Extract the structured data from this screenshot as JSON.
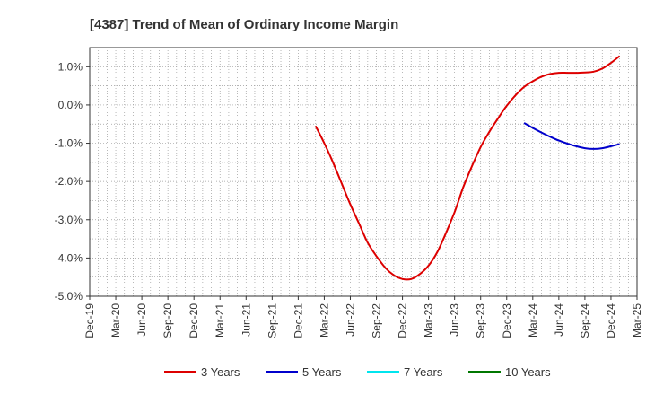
{
  "chart_data": {
    "type": "line",
    "title": "[4387]  Trend of Mean of Ordinary Income Margin",
    "xlabel": "",
    "ylabel": "",
    "x_ticks": [
      "Dec-19",
      "Mar-20",
      "Jun-20",
      "Sep-20",
      "Dec-20",
      "Mar-21",
      "Jun-21",
      "Sep-21",
      "Dec-21",
      "Mar-22",
      "Jun-22",
      "Sep-22",
      "Dec-22",
      "Mar-23",
      "Jun-23",
      "Sep-23",
      "Dec-23",
      "Mar-24",
      "Jun-24",
      "Sep-24",
      "Dec-24",
      "Mar-25"
    ],
    "y_ticks": [
      "1.0%",
      "0.0%",
      "-1.0%",
      "-2.0%",
      "-3.0%",
      "-4.0%",
      "-5.0%"
    ],
    "ylim": [
      -5.0,
      1.5
    ],
    "grid": true,
    "legend_position": "bottom",
    "series": [
      {
        "name": "3 Years",
        "color": "#dd0000",
        "points": [
          [
            "Feb-22",
            -0.55
          ],
          [
            "Mar-22",
            -1.0
          ],
          [
            "Apr-22",
            -1.5
          ],
          [
            "May-22",
            -2.05
          ],
          [
            "Jun-22",
            -2.6
          ],
          [
            "Jul-22",
            -3.1
          ],
          [
            "Aug-22",
            -3.6
          ],
          [
            "Sep-22",
            -3.95
          ],
          [
            "Oct-22",
            -4.25
          ],
          [
            "Nov-22",
            -4.45
          ],
          [
            "Dec-22",
            -4.55
          ],
          [
            "Jan-23",
            -4.55
          ],
          [
            "Feb-23",
            -4.42
          ],
          [
            "Mar-23",
            -4.2
          ],
          [
            "Apr-23",
            -3.85
          ],
          [
            "May-23",
            -3.35
          ],
          [
            "Jun-23",
            -2.8
          ],
          [
            "Jul-23",
            -2.15
          ],
          [
            "Aug-23",
            -1.6
          ],
          [
            "Sep-23",
            -1.1
          ],
          [
            "Oct-23",
            -0.7
          ],
          [
            "Nov-23",
            -0.35
          ],
          [
            "Dec-23",
            -0.02
          ],
          [
            "Jan-24",
            0.25
          ],
          [
            "Feb-24",
            0.47
          ],
          [
            "Mar-24",
            0.62
          ],
          [
            "Apr-24",
            0.74
          ],
          [
            "May-24",
            0.81
          ],
          [
            "Jun-24",
            0.84
          ],
          [
            "Jul-24",
            0.84
          ],
          [
            "Aug-24",
            0.84
          ],
          [
            "Sep-24",
            0.85
          ],
          [
            "Oct-24",
            0.87
          ],
          [
            "Nov-24",
            0.95
          ],
          [
            "Dec-24",
            1.1
          ],
          [
            "Jan-25",
            1.28
          ]
        ]
      },
      {
        "name": "5 Years",
        "color": "#0000cc",
        "points": [
          [
            "Feb-24",
            -0.47
          ],
          [
            "Mar-24",
            -0.6
          ],
          [
            "Apr-24",
            -0.72
          ],
          [
            "May-24",
            -0.83
          ],
          [
            "Jun-24",
            -0.93
          ],
          [
            "Jul-24",
            -1.01
          ],
          [
            "Aug-24",
            -1.08
          ],
          [
            "Sep-24",
            -1.13
          ],
          [
            "Oct-24",
            -1.15
          ],
          [
            "Nov-24",
            -1.13
          ],
          [
            "Dec-24",
            -1.08
          ],
          [
            "Jan-25",
            -1.02
          ]
        ]
      },
      {
        "name": "7 Years",
        "color": "#00e5ee",
        "points": []
      },
      {
        "name": "10 Years",
        "color": "#007700",
        "points": []
      }
    ]
  }
}
